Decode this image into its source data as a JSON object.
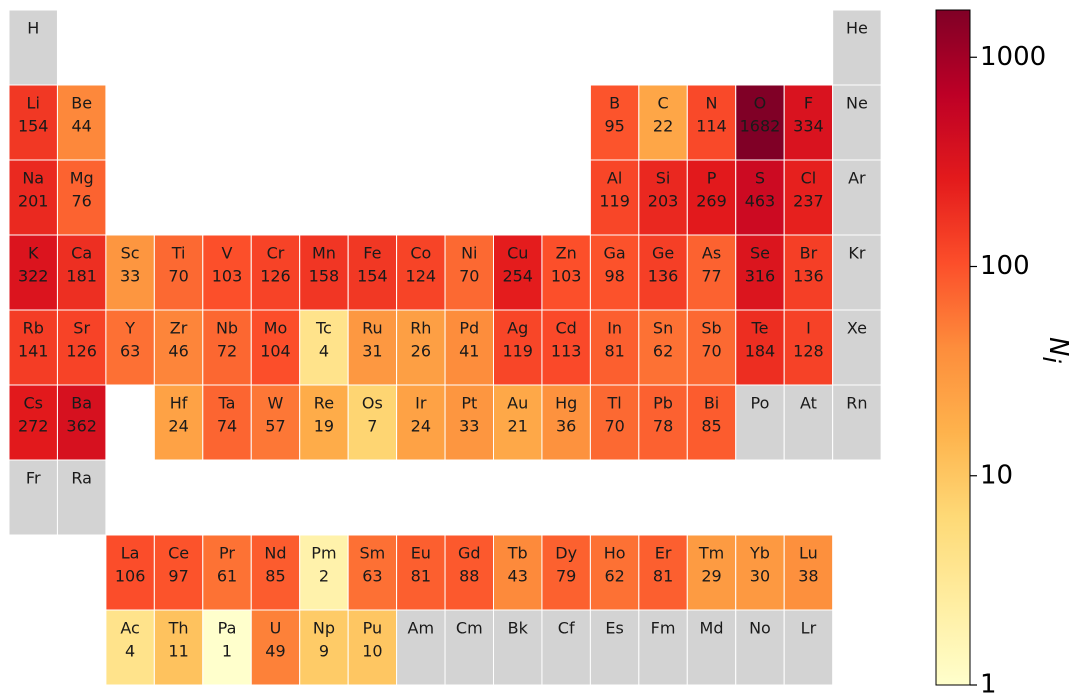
{
  "chart_data": {
    "type": "periodic_heatmap",
    "colorbar_label": "N",
    "colorbar_label_sub": "i",
    "missing_color": "#d3d3d3",
    "colorscale": [
      "#ffffcc",
      "#ffeda0",
      "#fed976",
      "#feb24c",
      "#fd8d3c",
      "#fc4e2a",
      "#e31a1c",
      "#bd0026",
      "#800026"
    ],
    "log_scale": true,
    "ylim": [
      1,
      1682
    ],
    "yticks": [
      1,
      10,
      100,
      1000
    ],
    "elements": [
      {
        "symbol": "H",
        "value": null
      },
      {
        "symbol": "He",
        "value": null
      },
      {
        "symbol": "Li",
        "value": 154
      },
      {
        "symbol": "Be",
        "value": 44
      },
      {
        "symbol": "B",
        "value": 95
      },
      {
        "symbol": "C",
        "value": 22
      },
      {
        "symbol": "N",
        "value": 114
      },
      {
        "symbol": "O",
        "value": 1682
      },
      {
        "symbol": "F",
        "value": 334
      },
      {
        "symbol": "Ne",
        "value": null
      },
      {
        "symbol": "Na",
        "value": 201
      },
      {
        "symbol": "Mg",
        "value": 76
      },
      {
        "symbol": "Al",
        "value": 119
      },
      {
        "symbol": "Si",
        "value": 203
      },
      {
        "symbol": "P",
        "value": 269
      },
      {
        "symbol": "S",
        "value": 463
      },
      {
        "symbol": "Cl",
        "value": 237
      },
      {
        "symbol": "Ar",
        "value": null
      },
      {
        "symbol": "K",
        "value": 322
      },
      {
        "symbol": "Ca",
        "value": 181
      },
      {
        "symbol": "Sc",
        "value": 33
      },
      {
        "symbol": "Ti",
        "value": 70
      },
      {
        "symbol": "V",
        "value": 103
      },
      {
        "symbol": "Cr",
        "value": 126
      },
      {
        "symbol": "Mn",
        "value": 158
      },
      {
        "symbol": "Fe",
        "value": 154
      },
      {
        "symbol": "Co",
        "value": 124
      },
      {
        "symbol": "Ni",
        "value": 70
      },
      {
        "symbol": "Cu",
        "value": 254
      },
      {
        "symbol": "Zn",
        "value": 103
      },
      {
        "symbol": "Ga",
        "value": 98
      },
      {
        "symbol": "Ge",
        "value": 136
      },
      {
        "symbol": "As",
        "value": 77
      },
      {
        "symbol": "Se",
        "value": 316
      },
      {
        "symbol": "Br",
        "value": 136
      },
      {
        "symbol": "Kr",
        "value": null
      },
      {
        "symbol": "Rb",
        "value": 141
      },
      {
        "symbol": "Sr",
        "value": 126
      },
      {
        "symbol": "Y",
        "value": 63
      },
      {
        "symbol": "Zr",
        "value": 46
      },
      {
        "symbol": "Nb",
        "value": 72
      },
      {
        "symbol": "Mo",
        "value": 104
      },
      {
        "symbol": "Tc",
        "value": 4
      },
      {
        "symbol": "Ru",
        "value": 31
      },
      {
        "symbol": "Rh",
        "value": 26
      },
      {
        "symbol": "Pd",
        "value": 41
      },
      {
        "symbol": "Ag",
        "value": 119
      },
      {
        "symbol": "Cd",
        "value": 113
      },
      {
        "symbol": "In",
        "value": 81
      },
      {
        "symbol": "Sn",
        "value": 62
      },
      {
        "symbol": "Sb",
        "value": 70
      },
      {
        "symbol": "Te",
        "value": 184
      },
      {
        "symbol": "I",
        "value": 128
      },
      {
        "symbol": "Xe",
        "value": null
      },
      {
        "symbol": "Cs",
        "value": 272
      },
      {
        "symbol": "Ba",
        "value": 362
      },
      {
        "symbol": "Hf",
        "value": 24
      },
      {
        "symbol": "Ta",
        "value": 74
      },
      {
        "symbol": "W",
        "value": 57
      },
      {
        "symbol": "Re",
        "value": 19
      },
      {
        "symbol": "Os",
        "value": 7
      },
      {
        "symbol": "Ir",
        "value": 24
      },
      {
        "symbol": "Pt",
        "value": 33
      },
      {
        "symbol": "Au",
        "value": 21
      },
      {
        "symbol": "Hg",
        "value": 36
      },
      {
        "symbol": "Tl",
        "value": 70
      },
      {
        "symbol": "Pb",
        "value": 78
      },
      {
        "symbol": "Bi",
        "value": 85
      },
      {
        "symbol": "Po",
        "value": null
      },
      {
        "symbol": "At",
        "value": null
      },
      {
        "symbol": "Rn",
        "value": null
      },
      {
        "symbol": "Fr",
        "value": null
      },
      {
        "symbol": "Ra",
        "value": null
      },
      {
        "symbol": "La",
        "value": 106
      },
      {
        "symbol": "Ce",
        "value": 97
      },
      {
        "symbol": "Pr",
        "value": 61
      },
      {
        "symbol": "Nd",
        "value": 85
      },
      {
        "symbol": "Pm",
        "value": 2
      },
      {
        "symbol": "Sm",
        "value": 63
      },
      {
        "symbol": "Eu",
        "value": 81
      },
      {
        "symbol": "Gd",
        "value": 88
      },
      {
        "symbol": "Tb",
        "value": 43
      },
      {
        "symbol": "Dy",
        "value": 79
      },
      {
        "symbol": "Ho",
        "value": 62
      },
      {
        "symbol": "Er",
        "value": 81
      },
      {
        "symbol": "Tm",
        "value": 29
      },
      {
        "symbol": "Yb",
        "value": 30
      },
      {
        "symbol": "Lu",
        "value": 38
      },
      {
        "symbol": "Ac",
        "value": 4
      },
      {
        "symbol": "Th",
        "value": 11
      },
      {
        "symbol": "Pa",
        "value": 1
      },
      {
        "symbol": "U",
        "value": 49
      },
      {
        "symbol": "Np",
        "value": 9
      },
      {
        "symbol": "Pu",
        "value": 10
      },
      {
        "symbol": "Am",
        "value": null
      },
      {
        "symbol": "Cm",
        "value": null
      },
      {
        "symbol": "Bk",
        "value": null
      },
      {
        "symbol": "Cf",
        "value": null
      },
      {
        "symbol": "Es",
        "value": null
      },
      {
        "symbol": "Fm",
        "value": null
      },
      {
        "symbol": "Md",
        "value": null
      },
      {
        "symbol": "No",
        "value": null
      },
      {
        "symbol": "Lr",
        "value": null
      }
    ]
  }
}
